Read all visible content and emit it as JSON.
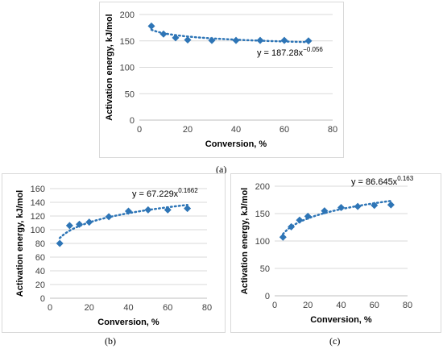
{
  "colors": {
    "marker": "#2e75b6",
    "trendline": "#2e75b6",
    "gridline": "#d9d9d9",
    "frame": "#d9d9d9"
  },
  "chart_data": [
    {
      "id": "a",
      "type": "scatter",
      "caption": "(a)",
      "xlabel": "Conversion, %",
      "ylabel": "Activation energy, kJ/mol",
      "xlim": [
        0,
        80
      ],
      "ylim": [
        0,
        200
      ],
      "xticks": [
        0,
        20,
        40,
        60,
        80
      ],
      "yticks": [
        0,
        50,
        100,
        150,
        200
      ],
      "grid": "horizontal",
      "series": [
        {
          "x": [
            5,
            10,
            15,
            20,
            30,
            40,
            50,
            60,
            70
          ],
          "y": [
            178,
            163,
            156,
            152,
            151,
            151,
            151,
            151,
            150
          ]
        }
      ],
      "trendline": {
        "type": "power",
        "coef": 187.28,
        "exp": -0.056,
        "x_range": [
          5,
          70
        ],
        "equation_base": "y = 187.28x",
        "equation_exp": "−0.056"
      }
    },
    {
      "id": "b",
      "type": "scatter",
      "caption": "(b)",
      "xlabel": "Conversion, %",
      "ylabel": "Activation energy, kJ/mol",
      "xlim": [
        0,
        80
      ],
      "ylim": [
        0,
        160
      ],
      "xticks": [
        0,
        20,
        40,
        60,
        80
      ],
      "yticks": [
        0,
        20,
        40,
        60,
        80,
        100,
        120,
        140,
        160
      ],
      "grid": "horizontal",
      "series": [
        {
          "x": [
            5,
            10,
            15,
            20,
            30,
            40,
            50,
            60,
            70
          ],
          "y": [
            80,
            106,
            108,
            111,
            119,
            127,
            129,
            129,
            131
          ]
        }
      ],
      "trendline": {
        "type": "power",
        "coef": 67.229,
        "exp": 0.1662,
        "x_range": [
          5,
          70
        ],
        "equation_base": "y = 67.229x",
        "equation_exp": "0.1662"
      }
    },
    {
      "id": "c",
      "type": "scatter",
      "caption": "(c)",
      "xlabel": "Conversion, %",
      "ylabel": "Activation energy, kJ/mol",
      "xlim": [
        0,
        80
      ],
      "ylim": [
        0,
        200
      ],
      "xticks": [
        0,
        20,
        40,
        60,
        80
      ],
      "yticks": [
        0,
        50,
        100,
        150,
        200
      ],
      "grid": "horizontal",
      "series": [
        {
          "x": [
            5,
            10,
            15,
            20,
            30,
            40,
            50,
            60,
            70
          ],
          "y": [
            107,
            126,
            138,
            145,
            155,
            161,
            163,
            165,
            166
          ]
        }
      ],
      "trendline": {
        "type": "power",
        "coef": 86.645,
        "exp": 0.163,
        "x_range": [
          5,
          70
        ],
        "equation_base": "y = 86.645x",
        "equation_exp": "0.163"
      }
    }
  ]
}
